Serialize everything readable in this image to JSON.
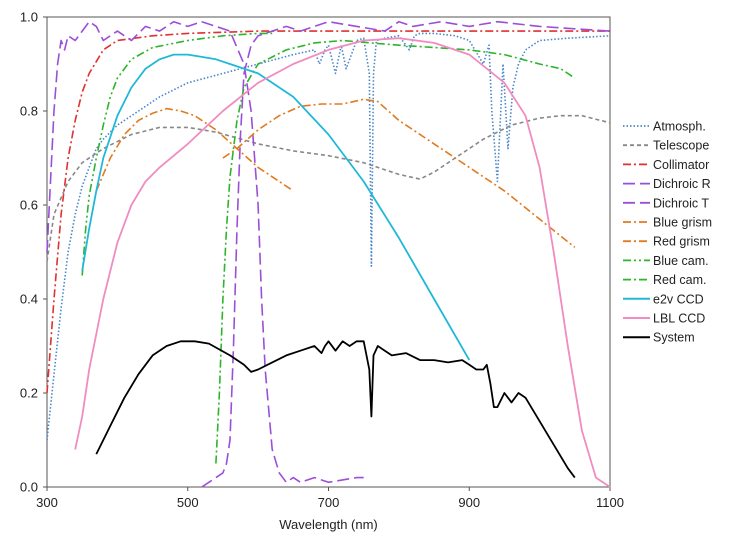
{
  "chart_data": {
    "type": "line",
    "title": "",
    "xlabel": "Wavelength (nm)",
    "ylabel": "",
    "xlim": [
      300,
      1100
    ],
    "ylim": [
      0,
      1
    ],
    "xticks": [
      300,
      500,
      700,
      900,
      1100
    ],
    "xtick_labels": [
      "300",
      "500",
      "700",
      "900",
      "1100"
    ],
    "yticks": [
      0,
      0.2,
      0.4,
      0.6,
      0.8,
      1.0
    ],
    "ytick_labels": [
      "0.0",
      "0.2",
      "0.4",
      "0.6",
      "0.8",
      "1.0"
    ],
    "grid": false,
    "legend_position": "right",
    "series": [
      {
        "name": "Atmosph.",
        "color": "#4a86c8",
        "dash": "dotted",
        "x": [
          300,
          310,
          320,
          330,
          340,
          350,
          360,
          370,
          380,
          400,
          430,
          460,
          500,
          550,
          600,
          650,
          680,
          687,
          695,
          700,
          710,
          718,
          725,
          740,
          750,
          758,
          761,
          764,
          768,
          780,
          800,
          815,
          822,
          830,
          850,
          880,
          900,
          920,
          928,
          932,
          940,
          948,
          955,
          962,
          970,
          980,
          1000,
          1040,
          1100
        ],
        "y": [
          0.1,
          0.24,
          0.38,
          0.5,
          0.58,
          0.64,
          0.68,
          0.72,
          0.74,
          0.77,
          0.8,
          0.83,
          0.86,
          0.88,
          0.9,
          0.92,
          0.93,
          0.9,
          0.93,
          0.94,
          0.88,
          0.94,
          0.89,
          0.95,
          0.955,
          0.88,
          0.47,
          0.88,
          0.95,
          0.955,
          0.96,
          0.93,
          0.96,
          0.965,
          0.965,
          0.96,
          0.95,
          0.9,
          0.94,
          0.8,
          0.65,
          0.9,
          0.72,
          0.85,
          0.9,
          0.93,
          0.95,
          0.955,
          0.96
        ]
      },
      {
        "name": "Telescope",
        "color": "#888888",
        "dash": "dashed",
        "x": [
          300,
          310,
          330,
          350,
          380,
          420,
          460,
          500,
          540,
          600,
          650,
          700,
          750,
          800,
          830,
          850,
          880,
          920,
          960,
          1000,
          1030,
          1060,
          1100
        ],
        "y": [
          0.48,
          0.58,
          0.65,
          0.69,
          0.72,
          0.75,
          0.765,
          0.765,
          0.755,
          0.73,
          0.715,
          0.705,
          0.69,
          0.665,
          0.655,
          0.67,
          0.7,
          0.74,
          0.77,
          0.785,
          0.79,
          0.79,
          0.775
        ]
      },
      {
        "name": "Collimator",
        "color": "#e03030",
        "dash": "dashdot",
        "x": [
          300,
          310,
          320,
          330,
          340,
          350,
          360,
          380,
          400,
          450,
          500,
          600,
          700,
          800,
          900,
          1000,
          1100
        ],
        "y": [
          0.2,
          0.4,
          0.58,
          0.7,
          0.78,
          0.84,
          0.88,
          0.93,
          0.95,
          0.96,
          0.965,
          0.97,
          0.97,
          0.97,
          0.97,
          0.97,
          0.97
        ]
      },
      {
        "name": "Dichroic R",
        "color": "#9b4fd8",
        "dash": "longdash",
        "x": [
          300,
          310,
          315,
          320,
          325,
          330,
          340,
          350,
          360,
          370,
          380,
          400,
          420,
          440,
          460,
          480,
          500,
          520,
          540,
          560,
          580,
          590,
          600,
          605,
          610,
          620,
          630,
          640,
          650,
          660,
          680,
          700,
          720,
          740,
          750
        ],
        "y": [
          0.5,
          0.8,
          0.9,
          0.95,
          0.93,
          0.96,
          0.95,
          0.97,
          0.99,
          0.98,
          0.95,
          0.97,
          0.95,
          0.98,
          0.97,
          0.99,
          0.98,
          0.99,
          0.98,
          0.97,
          0.9,
          0.8,
          0.6,
          0.4,
          0.25,
          0.08,
          0.03,
          0.01,
          0.02,
          0.01,
          0.02,
          0.01,
          0.015,
          0.02,
          0.02
        ]
      },
      {
        "name": "Dichroic T",
        "color": "#9b4fd8",
        "dash": "longdash",
        "x": [
          520,
          530,
          540,
          550,
          555,
          560,
          565,
          570,
          575,
          580,
          590,
          600,
          620,
          640,
          660,
          700,
          740,
          780,
          800,
          820,
          860,
          900,
          940,
          1000,
          1050,
          1100
        ],
        "y": [
          0.0,
          0.01,
          0.02,
          0.03,
          0.05,
          0.1,
          0.3,
          0.55,
          0.75,
          0.88,
          0.94,
          0.96,
          0.97,
          0.98,
          0.97,
          0.99,
          0.98,
          0.97,
          0.99,
          0.98,
          0.99,
          0.98,
          0.99,
          0.98,
          0.975,
          0.97
        ]
      },
      {
        "name": "Blue grism",
        "color": "#e07b20",
        "dash": "dashdot",
        "x": [
          370,
          390,
          410,
          430,
          450,
          470,
          490,
          510,
          540,
          570,
          600,
          620,
          640,
          650
        ],
        "y": [
          0.63,
          0.7,
          0.75,
          0.78,
          0.795,
          0.805,
          0.8,
          0.79,
          0.76,
          0.72,
          0.68,
          0.66,
          0.64,
          0.63
        ]
      },
      {
        "name": "Red grism",
        "color": "#e07b20",
        "dash": "dashdot",
        "x": [
          550,
          570,
          600,
          630,
          660,
          690,
          720,
          750,
          770,
          800,
          850,
          900,
          950,
          1000,
          1050
        ],
        "y": [
          0.7,
          0.72,
          0.76,
          0.79,
          0.81,
          0.815,
          0.815,
          0.825,
          0.82,
          0.78,
          0.73,
          0.68,
          0.63,
          0.57,
          0.51
        ]
      },
      {
        "name": "Blue cam.",
        "color": "#2cb42c",
        "dash": "dashdotdot",
        "x": [
          350,
          355,
          360,
          370,
          380,
          390,
          400,
          420,
          450,
          500,
          550,
          600,
          620
        ],
        "y": [
          0.45,
          0.55,
          0.62,
          0.7,
          0.77,
          0.83,
          0.87,
          0.91,
          0.935,
          0.95,
          0.96,
          0.965,
          0.965
        ]
      },
      {
        "name": "Red cam.",
        "color": "#2cb42c",
        "dash": "dashdot",
        "x": [
          540,
          545,
          550,
          555,
          560,
          570,
          580,
          600,
          640,
          680,
          720,
          760,
          800,
          850,
          900,
          950,
          1000,
          1030,
          1050
        ],
        "y": [
          0.05,
          0.2,
          0.4,
          0.55,
          0.66,
          0.78,
          0.85,
          0.9,
          0.93,
          0.945,
          0.95,
          0.945,
          0.94,
          0.935,
          0.93,
          0.92,
          0.9,
          0.89,
          0.87
        ]
      },
      {
        "name": "e2v CCD",
        "color": "#21b8d8",
        "dash": "solid",
        "x": [
          350,
          360,
          370,
          380,
          400,
          420,
          440,
          460,
          480,
          500,
          520,
          540,
          560,
          580,
          600,
          650,
          700,
          750,
          800,
          850,
          900
        ],
        "y": [
          0.46,
          0.55,
          0.63,
          0.7,
          0.79,
          0.85,
          0.89,
          0.91,
          0.92,
          0.92,
          0.915,
          0.91,
          0.9,
          0.89,
          0.88,
          0.83,
          0.75,
          0.65,
          0.53,
          0.4,
          0.27
        ]
      },
      {
        "name": "LBL CCD",
        "color": "#f08cc0",
        "dash": "solid",
        "x": [
          340,
          350,
          360,
          380,
          400,
          420,
          440,
          460,
          500,
          550,
          600,
          650,
          700,
          750,
          800,
          850,
          900,
          950,
          980,
          1000,
          1020,
          1040,
          1060,
          1080,
          1100
        ],
        "y": [
          0.08,
          0.15,
          0.25,
          0.4,
          0.52,
          0.6,
          0.65,
          0.68,
          0.73,
          0.8,
          0.86,
          0.9,
          0.93,
          0.95,
          0.955,
          0.945,
          0.92,
          0.86,
          0.79,
          0.68,
          0.5,
          0.3,
          0.12,
          0.02,
          0.0
        ]
      },
      {
        "name": "System",
        "color": "#000000",
        "dash": "solid",
        "x": [
          370,
          390,
          410,
          430,
          450,
          470,
          490,
          510,
          530,
          560,
          580,
          590,
          600,
          620,
          640,
          660,
          680,
          690,
          695,
          700,
          710,
          720,
          730,
          740,
          750,
          758,
          761,
          764,
          770,
          790,
          810,
          830,
          850,
          870,
          890,
          900,
          910,
          920,
          925,
          930,
          935,
          940,
          950,
          960,
          970,
          980,
          1000,
          1020,
          1040,
          1050
        ],
        "y": [
          0.07,
          0.13,
          0.19,
          0.24,
          0.28,
          0.3,
          0.31,
          0.31,
          0.305,
          0.28,
          0.26,
          0.245,
          0.25,
          0.265,
          0.28,
          0.29,
          0.3,
          0.285,
          0.3,
          0.31,
          0.29,
          0.31,
          0.3,
          0.31,
          0.31,
          0.25,
          0.15,
          0.28,
          0.3,
          0.28,
          0.285,
          0.27,
          0.27,
          0.265,
          0.27,
          0.26,
          0.25,
          0.25,
          0.26,
          0.22,
          0.17,
          0.17,
          0.2,
          0.18,
          0.2,
          0.19,
          0.14,
          0.09,
          0.04,
          0.02
        ]
      }
    ]
  }
}
